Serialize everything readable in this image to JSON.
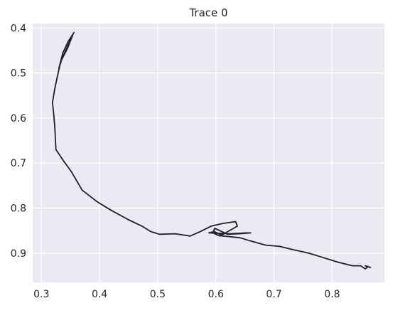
{
  "chart_data": {
    "type": "line",
    "title": "Trace 0",
    "xlabel": "",
    "ylabel": "",
    "xlim": [
      0.285,
      0.89
    ],
    "ylim": [
      0.965,
      0.39
    ],
    "y_inverted": true,
    "grid": true,
    "background": "#eaeaf2",
    "grid_color": "#ffffff",
    "line_color": "#1f1f2a",
    "x_ticks": [
      0.3,
      0.4,
      0.5,
      0.6,
      0.7,
      0.8
    ],
    "x_tick_labels": [
      "0.3",
      "0.4",
      "0.5",
      "0.6",
      "0.7",
      "0.8"
    ],
    "y_ticks": [
      0.4,
      0.5,
      0.6,
      0.7,
      0.8,
      0.9
    ],
    "y_tick_labels": [
      "0.4",
      "0.5",
      "0.6",
      "0.7",
      "0.8",
      "0.9"
    ],
    "series": [
      {
        "x": [
          0.356,
          0.346,
          0.337,
          0.33,
          0.335,
          0.345,
          0.354,
          0.345,
          0.333,
          0.327,
          0.323,
          0.319,
          0.321,
          0.323,
          0.325,
          0.338,
          0.352,
          0.37,
          0.395,
          0.42,
          0.45,
          0.473,
          0.488,
          0.503,
          0.53,
          0.556,
          0.575,
          0.592,
          0.612,
          0.634,
          0.637,
          0.61,
          0.597,
          0.588,
          0.605,
          0.622,
          0.64,
          0.652,
          0.66,
          0.64,
          0.62,
          0.598,
          0.595,
          0.605,
          0.62,
          0.642,
          0.66,
          0.685,
          0.71,
          0.735,
          0.76,
          0.785,
          0.81,
          0.835,
          0.849,
          0.857,
          0.862,
          0.857,
          0.866
        ],
        "y": [
          0.41,
          0.43,
          0.455,
          0.49,
          0.47,
          0.445,
          0.415,
          0.44,
          0.475,
          0.51,
          0.535,
          0.566,
          0.59,
          0.62,
          0.67,
          0.695,
          0.72,
          0.76,
          0.785,
          0.805,
          0.826,
          0.84,
          0.852,
          0.858,
          0.857,
          0.862,
          0.851,
          0.84,
          0.834,
          0.83,
          0.84,
          0.86,
          0.852,
          0.855,
          0.856,
          0.857,
          0.856,
          0.855,
          0.855,
          0.857,
          0.858,
          0.845,
          0.855,
          0.861,
          0.863,
          0.866,
          0.873,
          0.882,
          0.885,
          0.893,
          0.9,
          0.91,
          0.92,
          0.928,
          0.928,
          0.935,
          0.93,
          0.928,
          0.932
        ]
      }
    ]
  }
}
